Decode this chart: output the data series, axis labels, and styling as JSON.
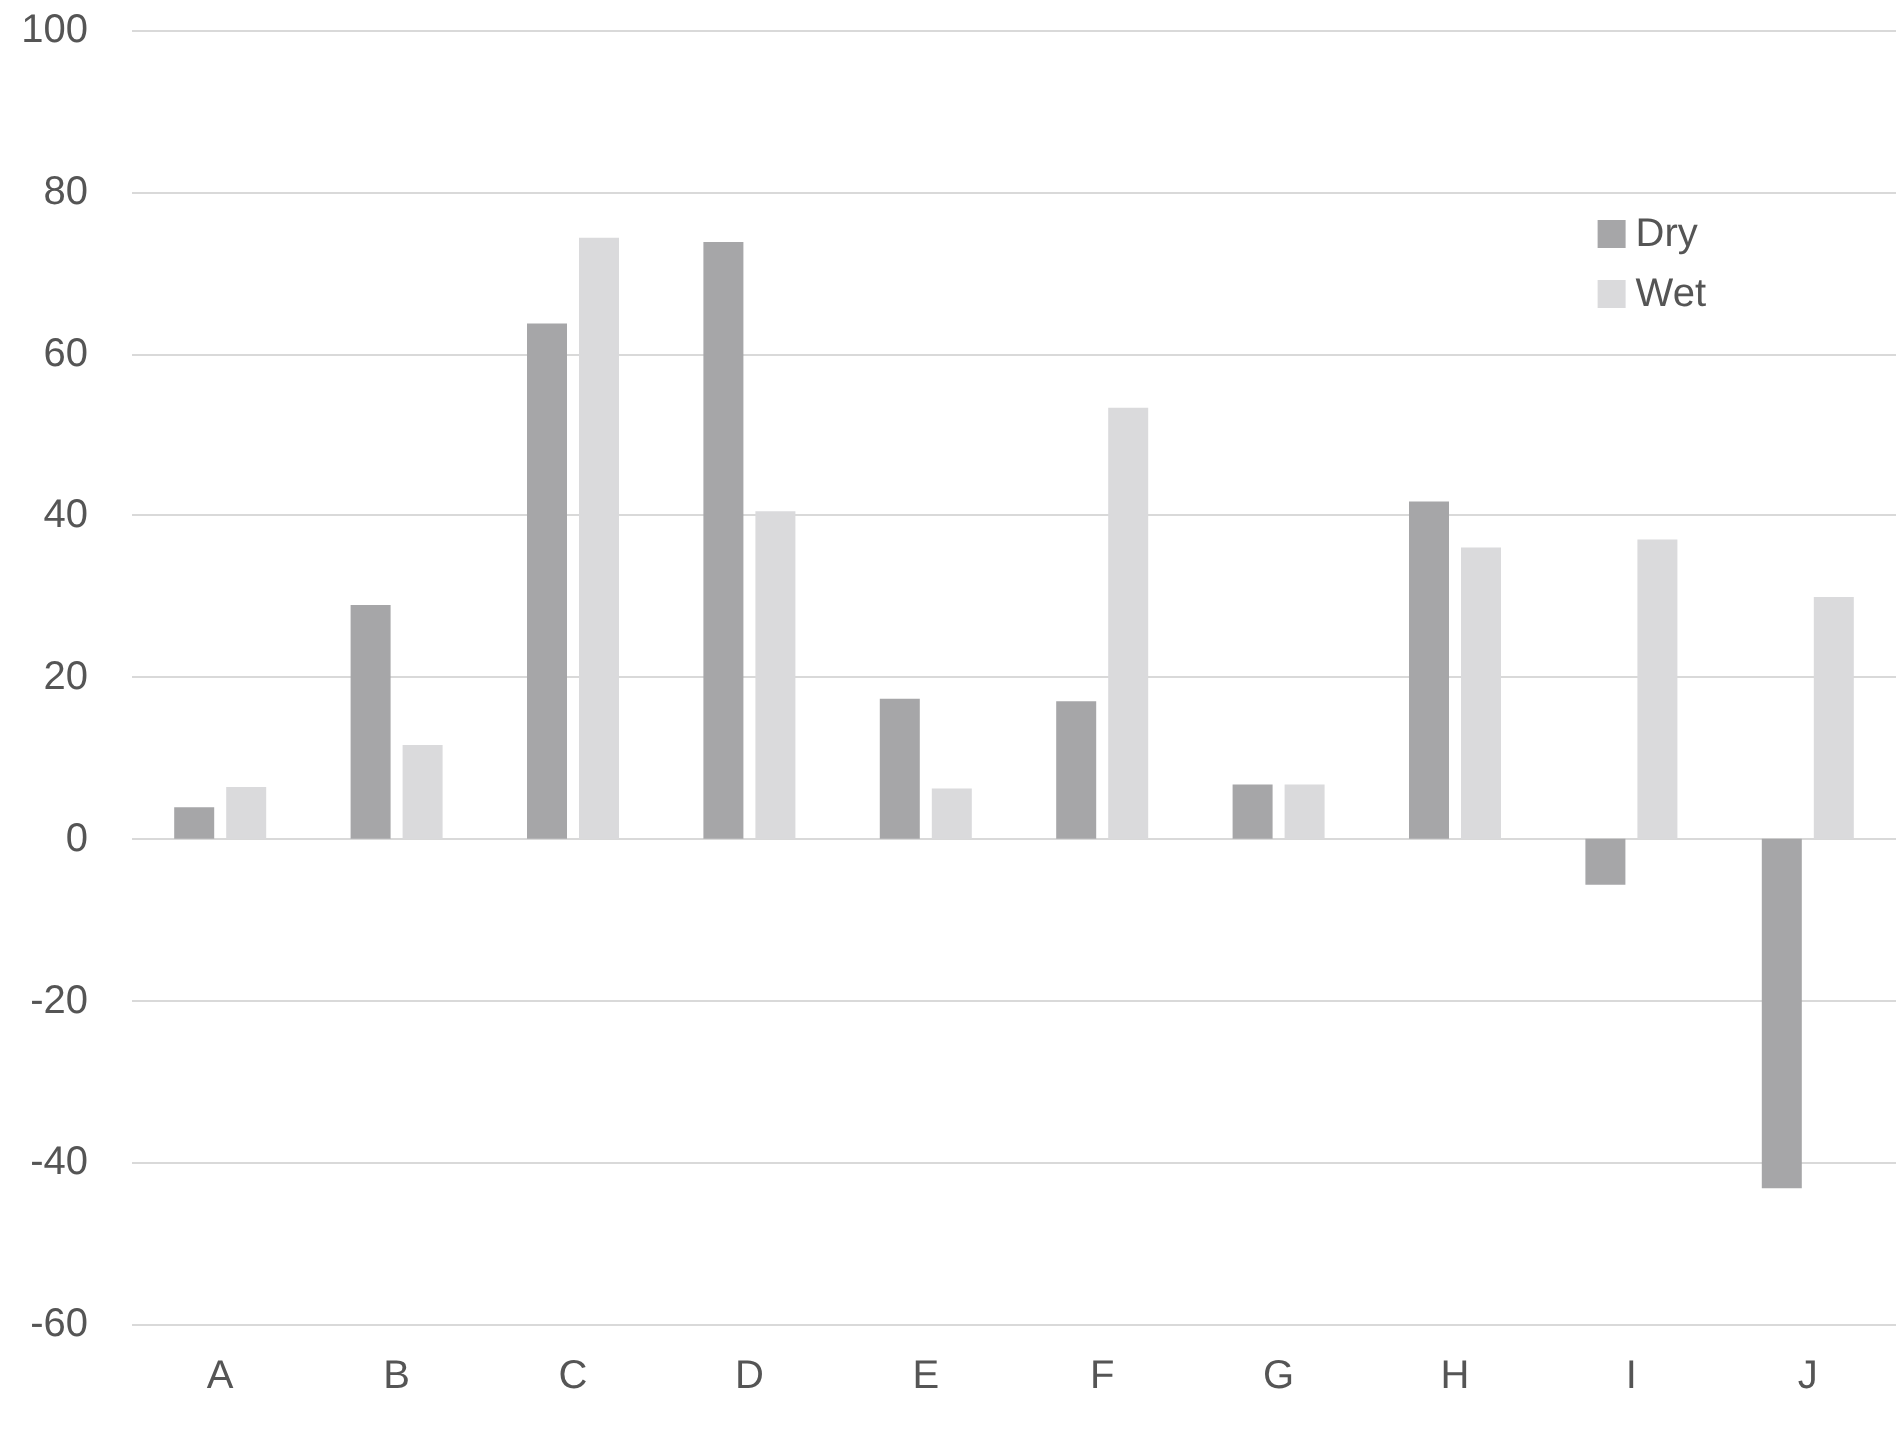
{
  "chart_data": {
    "type": "bar",
    "categories": [
      "A",
      "B",
      "C",
      "D",
      "E",
      "F",
      "G",
      "H",
      "I",
      "J"
    ],
    "series": [
      {
        "name": "Dry",
        "color": "#a6a6a8",
        "values": [
          3.9,
          28.9,
          63.7,
          73.8,
          17.3,
          17,
          6.7,
          41.7,
          -5.7,
          -43.2
        ]
      },
      {
        "name": "Wet",
        "color": "#dadadc",
        "values": [
          6.4,
          11.6,
          74.3,
          40.5,
          6.2,
          53.3,
          6.7,
          36,
          37,
          29.9
        ]
      }
    ],
    "ylim": [
      -60,
      100
    ],
    "yticks": [
      -60,
      -40,
      -20,
      0,
      20,
      40,
      60,
      80,
      100
    ],
    "grid": "y",
    "legend": "top right"
  }
}
